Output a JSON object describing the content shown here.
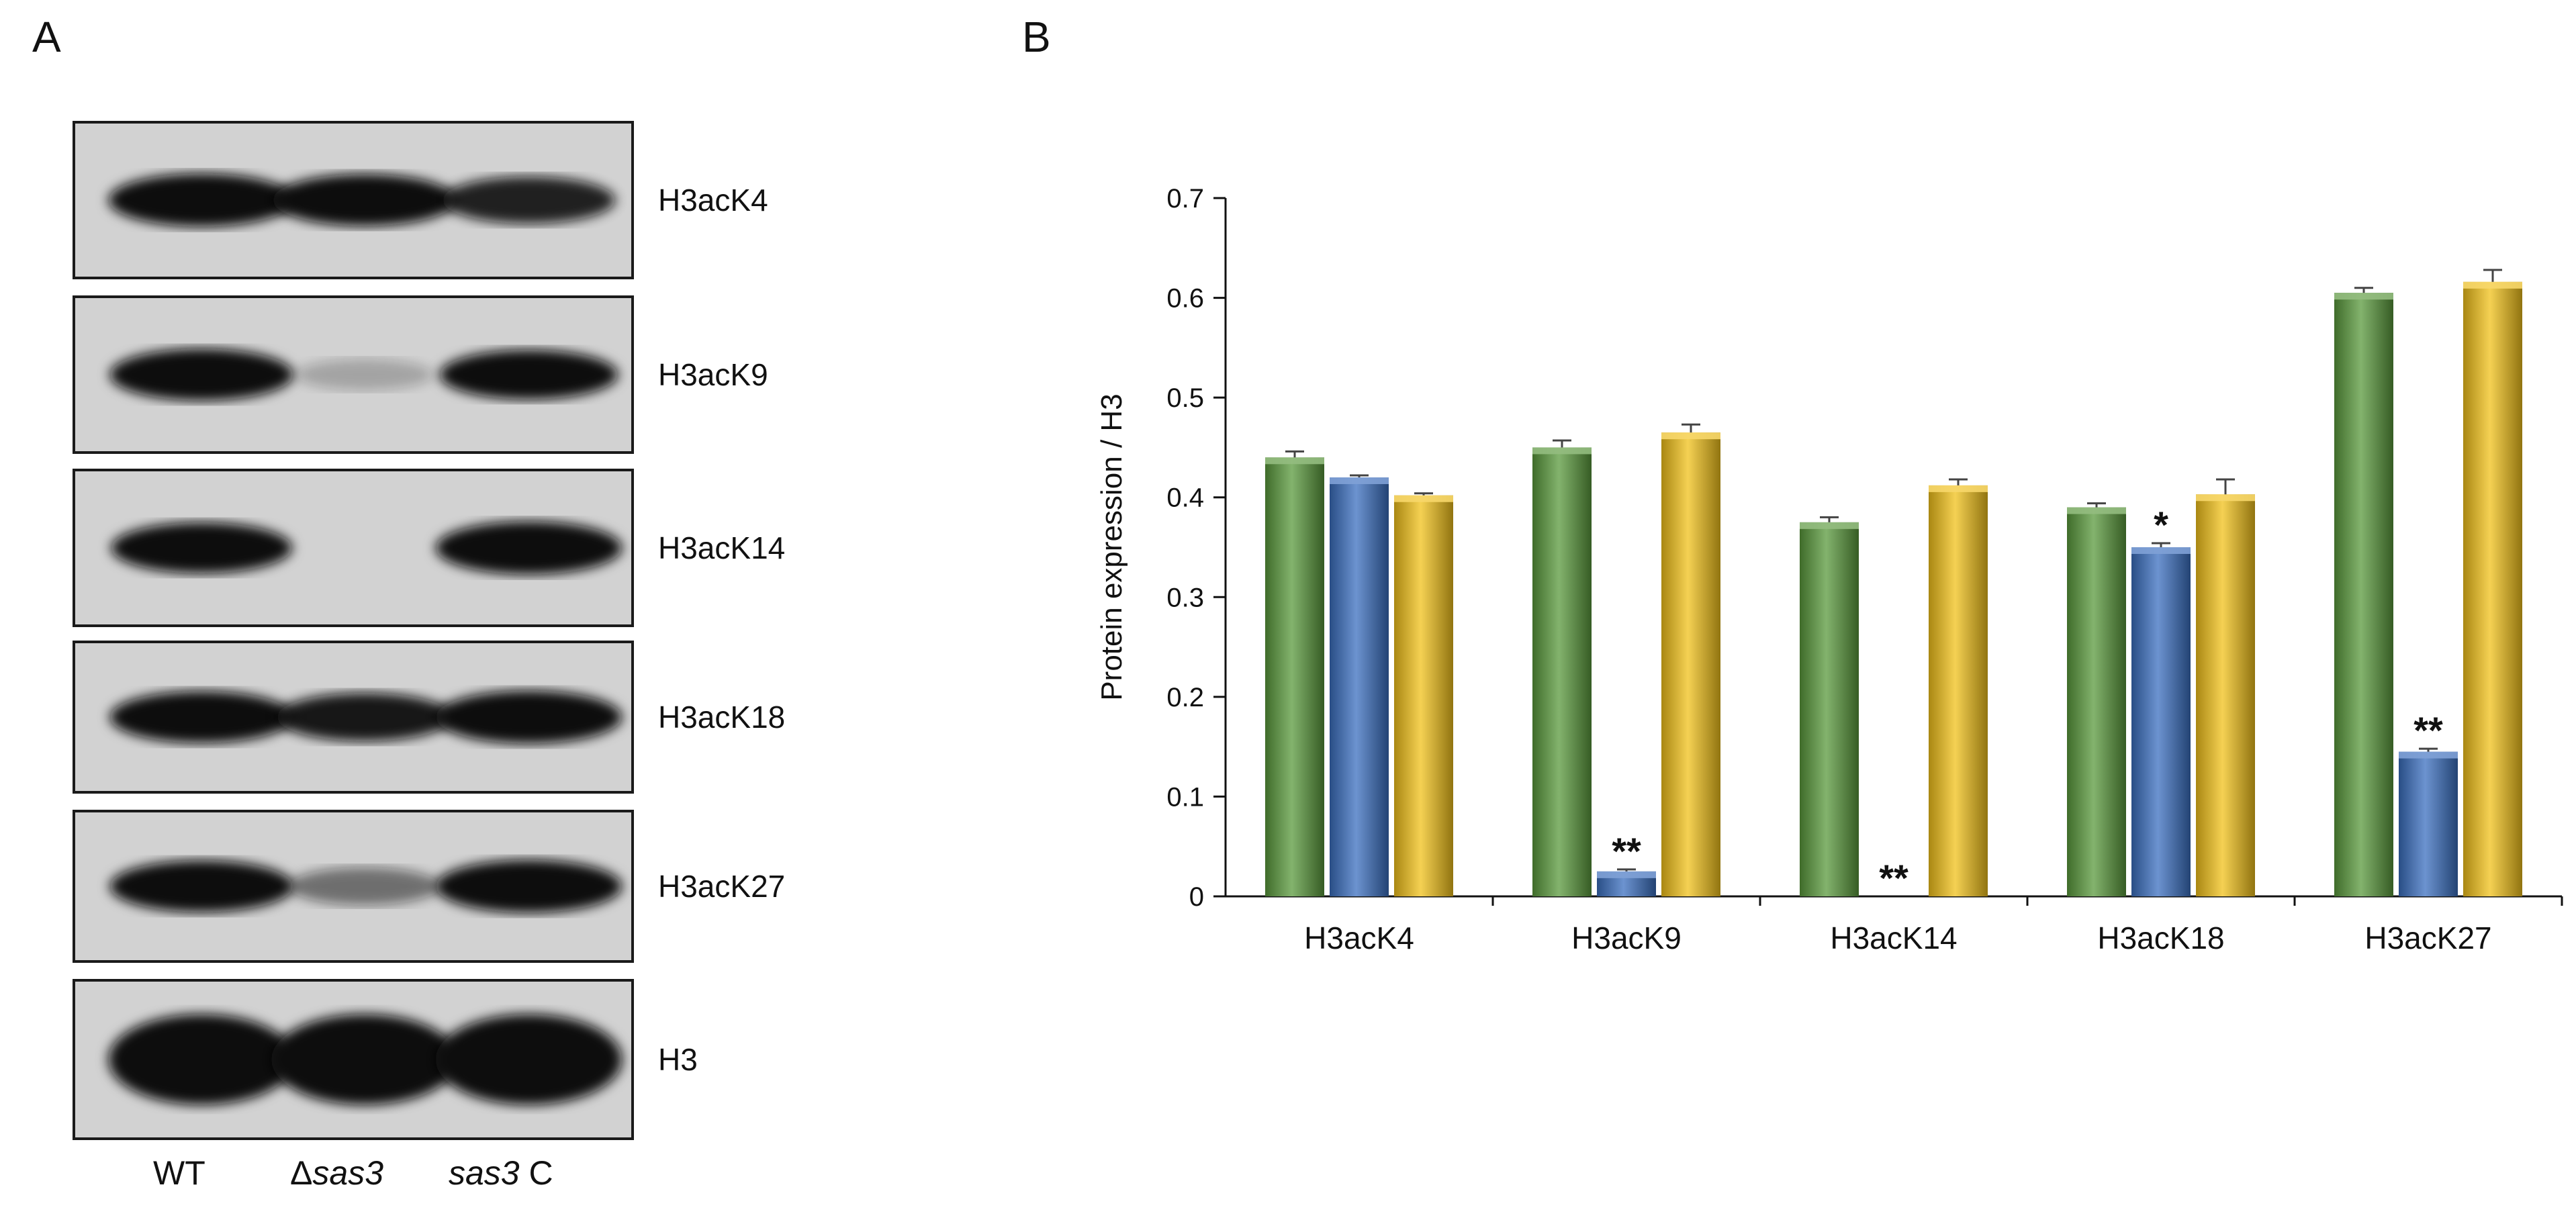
{
  "panels": {
    "A": {
      "letter": "A"
    },
    "B": {
      "letter": "B"
    }
  },
  "blot": {
    "rows": [
      {
        "label": "H3acK4",
        "intensity": [
          1.0,
          0.95,
          0.75
        ]
      },
      {
        "label": "H3acK9",
        "intensity": [
          0.95,
          0.08,
          0.85
        ]
      },
      {
        "label": "H3acK14",
        "intensity": [
          0.9,
          0.0,
          1.0
        ]
      },
      {
        "label": "H3acK18",
        "intensity": [
          0.95,
          0.8,
          1.0
        ]
      },
      {
        "label": "H3acK27",
        "intensity": [
          0.95,
          0.35,
          1.0
        ]
      },
      {
        "label": "H3",
        "intensity": [
          1.0,
          1.0,
          1.0
        ]
      }
    ],
    "lanes": [
      {
        "prefix": "WT",
        "italic": "",
        "suffix": ""
      },
      {
        "prefix": "Δ",
        "italic": "sas3",
        "suffix": ""
      },
      {
        "prefix": "",
        "italic": "sas3",
        "suffix": " C"
      }
    ]
  },
  "chart_data": {
    "type": "bar",
    "categories": [
      "H3acK4",
      "H3acK9",
      "H3acK14",
      "H3acK18",
      "H3acK27"
    ],
    "series": [
      {
        "values": [
          0.44,
          0.45,
          0.375,
          0.39,
          0.605
        ],
        "errors": [
          0.006,
          0.007,
          0.005,
          0.004,
          0.005
        ],
        "color": "#5a9a3c"
      },
      {
        "values": [
          0.42,
          0.025,
          0.0,
          0.35,
          0.145
        ],
        "errors": [
          0.002,
          0.002,
          0.0,
          0.004,
          0.003
        ],
        "color": "#3b6fc0"
      },
      {
        "values": [
          0.402,
          0.465,
          0.412,
          0.403,
          0.616
        ],
        "errors": [
          0.002,
          0.008,
          0.006,
          0.015,
          0.012
        ],
        "color": "#f2c11a"
      }
    ],
    "annotations": [
      {
        "category": "H3acK9",
        "series": 1,
        "text": "**"
      },
      {
        "category": "H3acK14",
        "series": 1,
        "text": "**"
      },
      {
        "category": "H3acK18",
        "series": 1,
        "text": "*"
      },
      {
        "category": "H3acK27",
        "series": 1,
        "text": "**"
      }
    ],
    "title": "",
    "xlabel": "",
    "ylabel": "Protein expression / H3",
    "ylim": [
      0,
      0.7
    ],
    "yticks": [
      "0",
      "0.1",
      "0.2",
      "0.3",
      "0.4",
      "0.5",
      "0.6",
      "0.7"
    ],
    "grid": false,
    "legend": "none"
  }
}
